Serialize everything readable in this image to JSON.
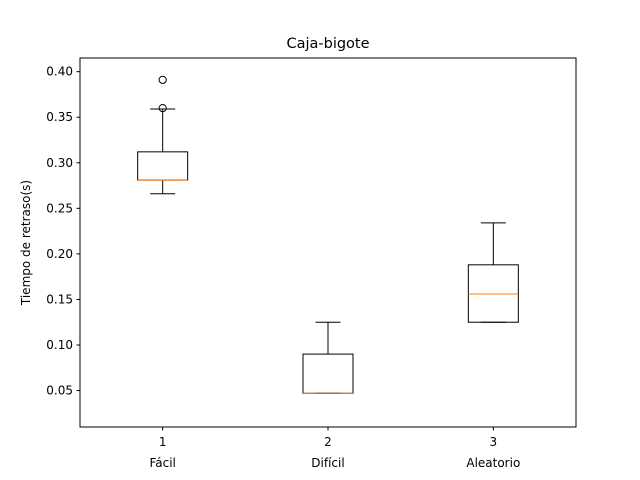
{
  "chart_data": {
    "type": "boxplot",
    "title": "Caja-bigote",
    "xlabel": "",
    "ylabel": "Tiempo de retraso(s)",
    "ylim": [
      0.01,
      0.415
    ],
    "yticks": [
      "0.05",
      "0.10",
      "0.15",
      "0.20",
      "0.25",
      "0.30",
      "0.35",
      "0.40"
    ],
    "grid": false,
    "categories": [
      {
        "position": "1",
        "label": "Fácil"
      },
      {
        "position": "2",
        "label": "Difícil"
      },
      {
        "position": "3",
        "label": "Aleatorio"
      }
    ],
    "boxes": [
      {
        "whisker_low": 0.266,
        "q1": 0.281,
        "median": 0.281,
        "q3": 0.312,
        "whisker_high": 0.359,
        "outliers": [
          0.36,
          0.391
        ]
      },
      {
        "whisker_low": 0.047,
        "q1": 0.047,
        "median": 0.047,
        "q3": 0.09,
        "whisker_high": 0.125,
        "outliers": []
      },
      {
        "whisker_low": 0.125,
        "q1": 0.125,
        "median": 0.156,
        "q3": 0.188,
        "whisker_high": 0.234,
        "outliers": []
      }
    ],
    "colors": {
      "box": "#000000",
      "median": "#ff7f0e",
      "outlier": "#000000"
    }
  }
}
